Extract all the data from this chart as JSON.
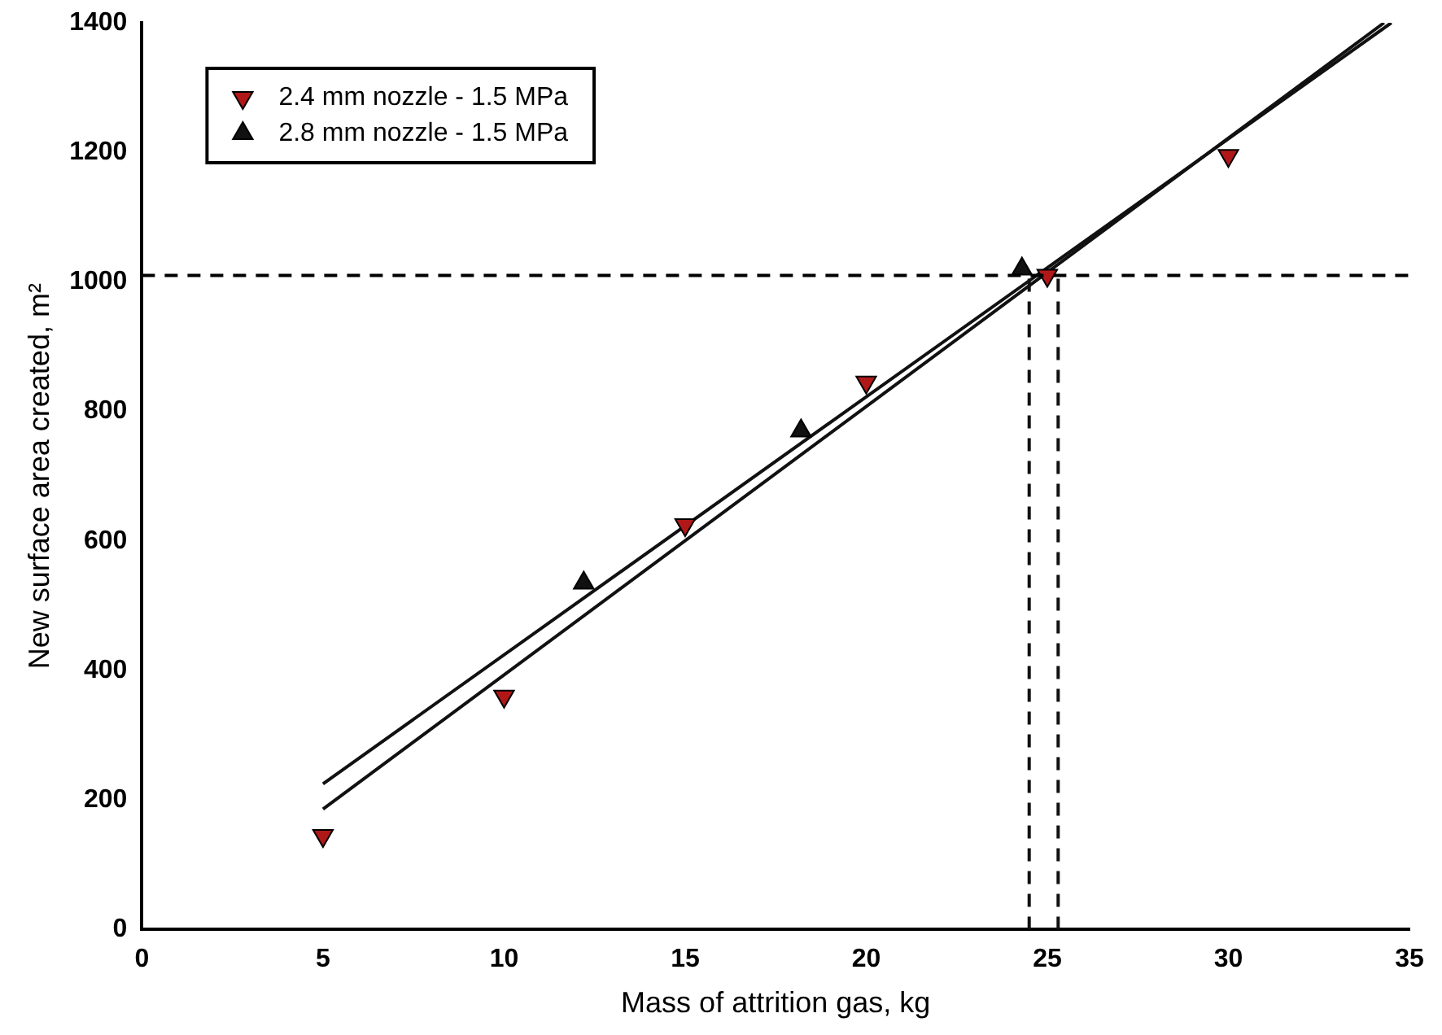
{
  "chart_data": {
    "type": "scatter",
    "xlabel": "Mass of attrition gas, kg",
    "ylabel": "New surface area created, m²",
    "xlim": [
      0,
      35
    ],
    "xticks": [
      0,
      5,
      10,
      15,
      20,
      25,
      30,
      35
    ],
    "ylim": [
      0,
      1400
    ],
    "yticks": [
      0,
      200,
      400,
      600,
      800,
      1000,
      1200,
      1400
    ],
    "grid": false,
    "legend": "top left",
    "ref_lines": [
      {
        "axis": "y",
        "value": 1010,
        "line_style": "dashed",
        "color": "#000000"
      }
    ],
    "series": [
      {
        "name": "2.4 mm nozzle - 1.5 MPa",
        "marker": "triangle-down",
        "color": "#b01818",
        "x": [
          5,
          10,
          15,
          20,
          25,
          30
        ],
        "values": [
          145,
          360,
          625,
          845,
          1010,
          1195
        ]
      },
      {
        "name": "2.8 mm nozzle - 1.5 MPa",
        "marker": "triangle",
        "color": "#111111",
        "x": [
          12.2,
          18.2,
          24.3
        ],
        "values": [
          535,
          770,
          1020
        ]
      },
      {
        "type": "line",
        "marker": "none",
        "line_style": "solid",
        "color": "#111111",
        "x": [
          5,
          34.3
        ],
        "values": [
          186,
          1400
        ]
      },
      {
        "type": "line",
        "marker": "none",
        "line_style": "solid",
        "color": "#111111",
        "x": [
          5,
          34.5
        ],
        "values": [
          225,
          1400
        ]
      },
      {
        "type": "line",
        "marker": "none",
        "line_style": "dashed",
        "color": "#111111",
        "x": [
          24.5,
          24.5
        ],
        "values": [
          0,
          1010
        ]
      },
      {
        "type": "line",
        "marker": "none",
        "line_style": "dashed",
        "color": "#111111",
        "x": [
          25.3,
          25.3
        ],
        "values": [
          0,
          1010
        ]
      }
    ]
  }
}
